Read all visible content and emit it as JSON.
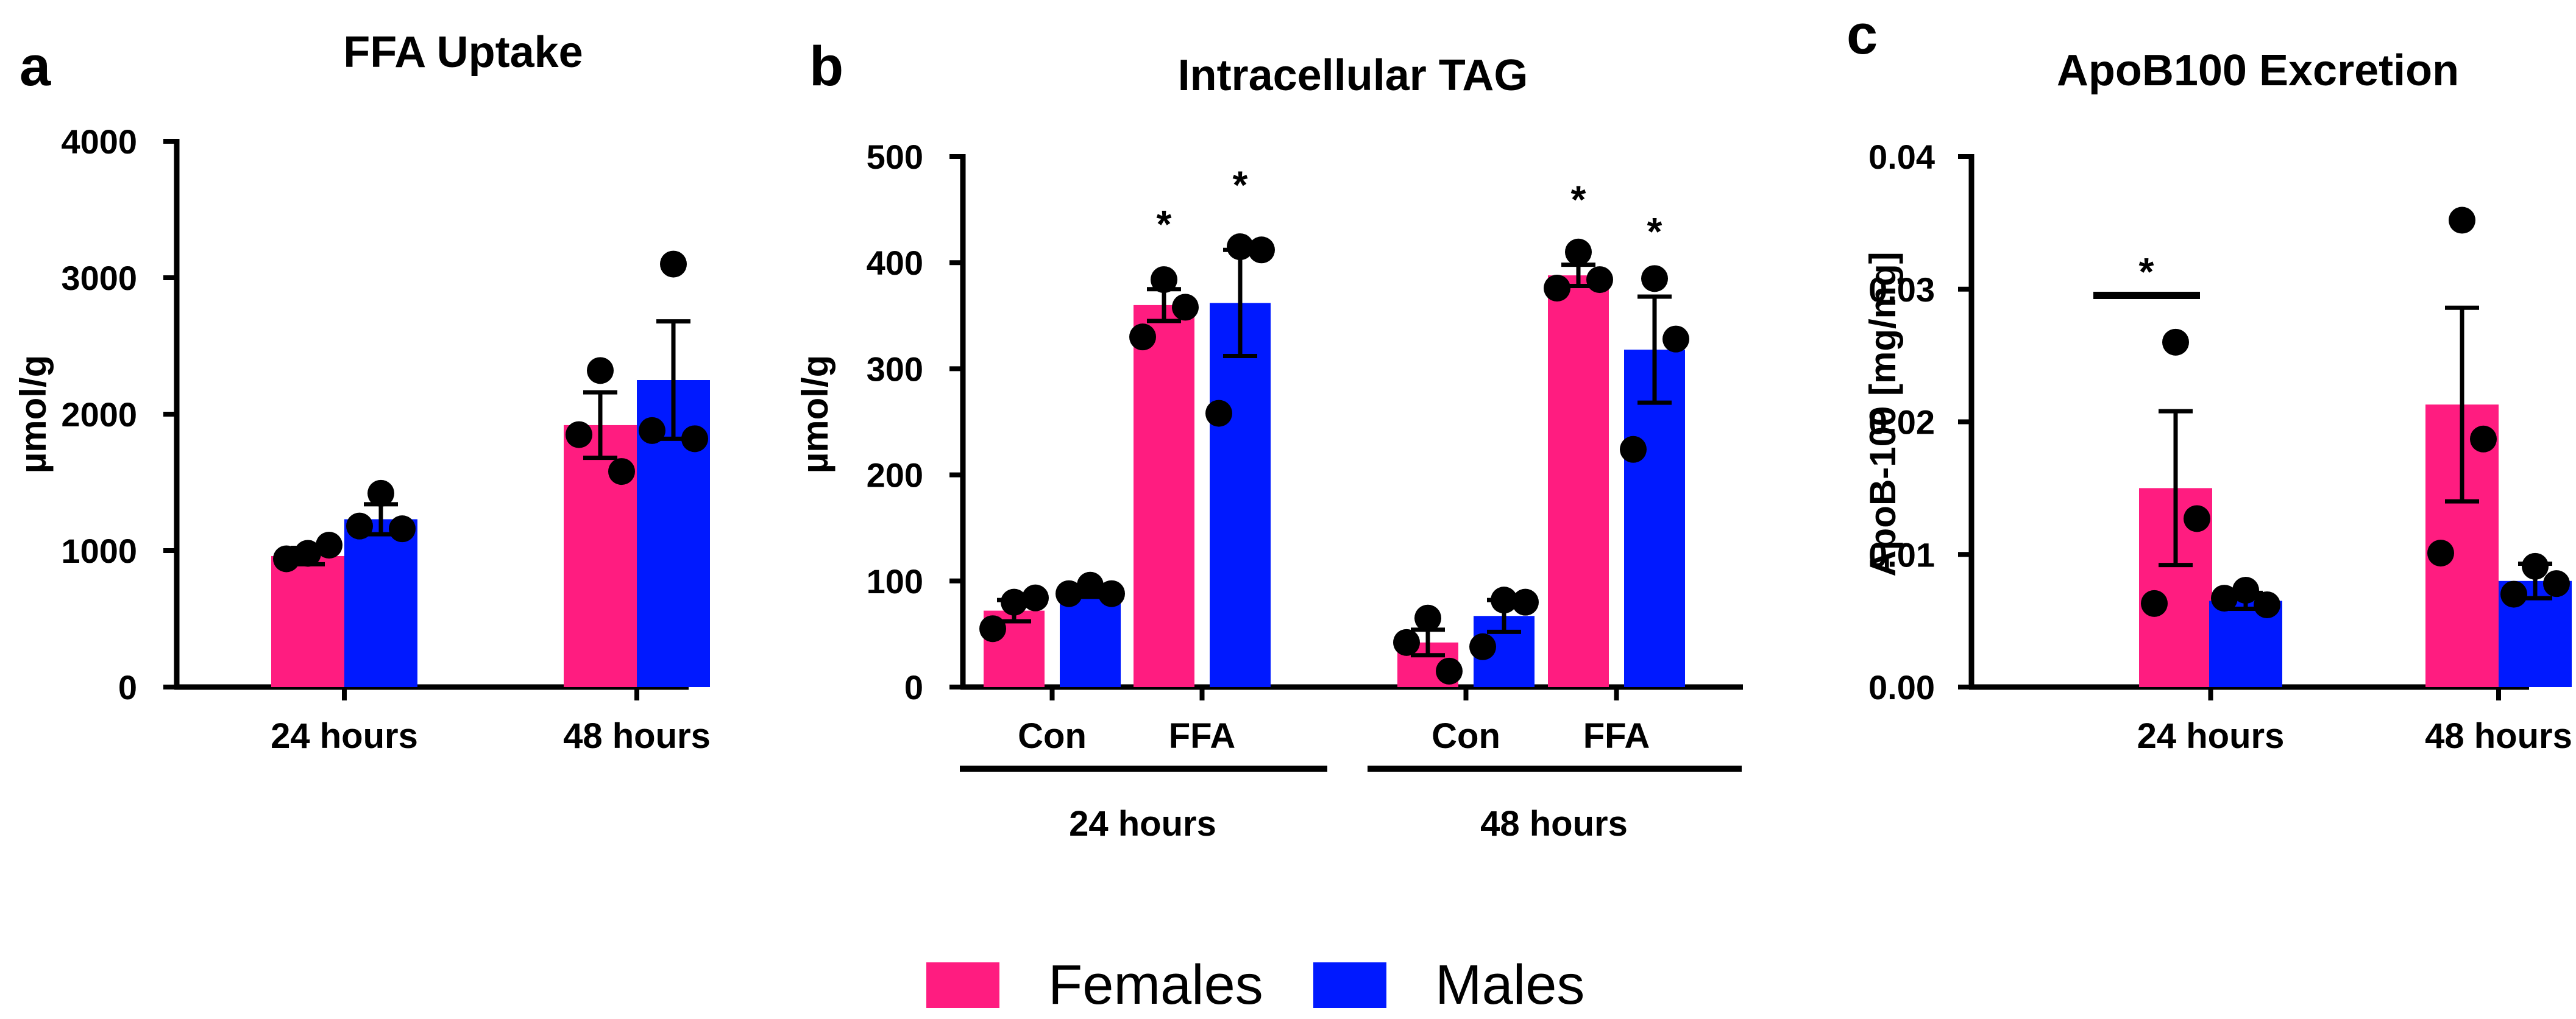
{
  "colors": {
    "female": "#ff1c80",
    "male": "#0019ff"
  },
  "legend": [
    "Females",
    "Males"
  ],
  "chart_data": [
    {
      "type": "bar",
      "panel": "a",
      "title": "FFA Uptake",
      "ylabel": "µmol/g",
      "ylim": [
        0,
        4000
      ],
      "yticks": [
        "0",
        "1000",
        "2000",
        "3000",
        "4000"
      ],
      "categories": [
        "24 hours",
        "48 hours"
      ],
      "series": [
        {
          "name": "Females",
          "values": [
            960,
            1920
          ],
          "errors": [
            60,
            240
          ],
          "points": [
            [
              980,
              1040,
              940
            ],
            [
              2320,
              1580,
              1850
            ]
          ]
        },
        {
          "name": "Males",
          "values": [
            1230,
            2250
          ],
          "errors": [
            110,
            430
          ],
          "points": [
            [
              1420,
              1160,
              1180
            ],
            [
              3100,
              1820,
              1880
            ]
          ]
        }
      ]
    },
    {
      "type": "bar",
      "panel": "b",
      "title": "Intracellular TAG",
      "ylabel": "µmol/g",
      "ylim": [
        0,
        500
      ],
      "yticks": [
        "0",
        "100",
        "200",
        "300",
        "400",
        "500"
      ],
      "categories": [
        "Con",
        "FFA",
        "Con",
        "FFA"
      ],
      "groups": [
        "24 hours",
        "48 hours"
      ],
      "star": "*",
      "series": [
        {
          "name": "Females",
          "values": [
            72,
            360,
            42,
            388
          ],
          "errors": [
            10,
            15,
            12,
            10
          ],
          "points": [
            [
              80,
              84,
              55
            ],
            [
              384,
              358,
              330
            ],
            [
              65,
              15,
              42
            ],
            [
              410,
              384,
              376
            ]
          ],
          "sig": [
            false,
            true,
            false,
            true
          ]
        },
        {
          "name": "Males",
          "values": [
            90,
            362,
            67,
            318
          ],
          "errors": [
            5,
            50,
            15,
            50
          ],
          "points": [
            [
              96,
              88,
              88
            ],
            [
              415,
              412,
              258
            ],
            [
              82,
              80,
              38
            ],
            [
              385,
              328,
              224
            ]
          ],
          "sig": [
            false,
            true,
            false,
            true
          ]
        }
      ]
    },
    {
      "type": "bar",
      "panel": "c",
      "title": "ApoB100 Excretion",
      "ylabel": "ApoB-100 [mg/mg]",
      "ylim": [
        0,
        0.04
      ],
      "yticks": [
        "0.00",
        "0.01",
        "0.02",
        "0.03",
        "0.04"
      ],
      "categories": [
        "24 hours",
        "48 hours"
      ],
      "star": "*",
      "series": [
        {
          "name": "Females",
          "values": [
            0.015,
            0.0213
          ],
          "errors": [
            0.0058,
            0.0073
          ],
          "points": [
            [
              0.026,
              0.0127,
              0.0063
            ],
            [
              0.0352,
              0.0187,
              0.0101
            ]
          ]
        },
        {
          "name": "Males",
          "values": [
            0.0065,
            0.008
          ],
          "errors": [
            0.0006,
            0.0013
          ],
          "points": [
            [
              0.0073,
              0.0062,
              0.0067
            ],
            [
              0.0091,
              0.0078,
              0.007
            ]
          ]
        }
      ]
    }
  ]
}
